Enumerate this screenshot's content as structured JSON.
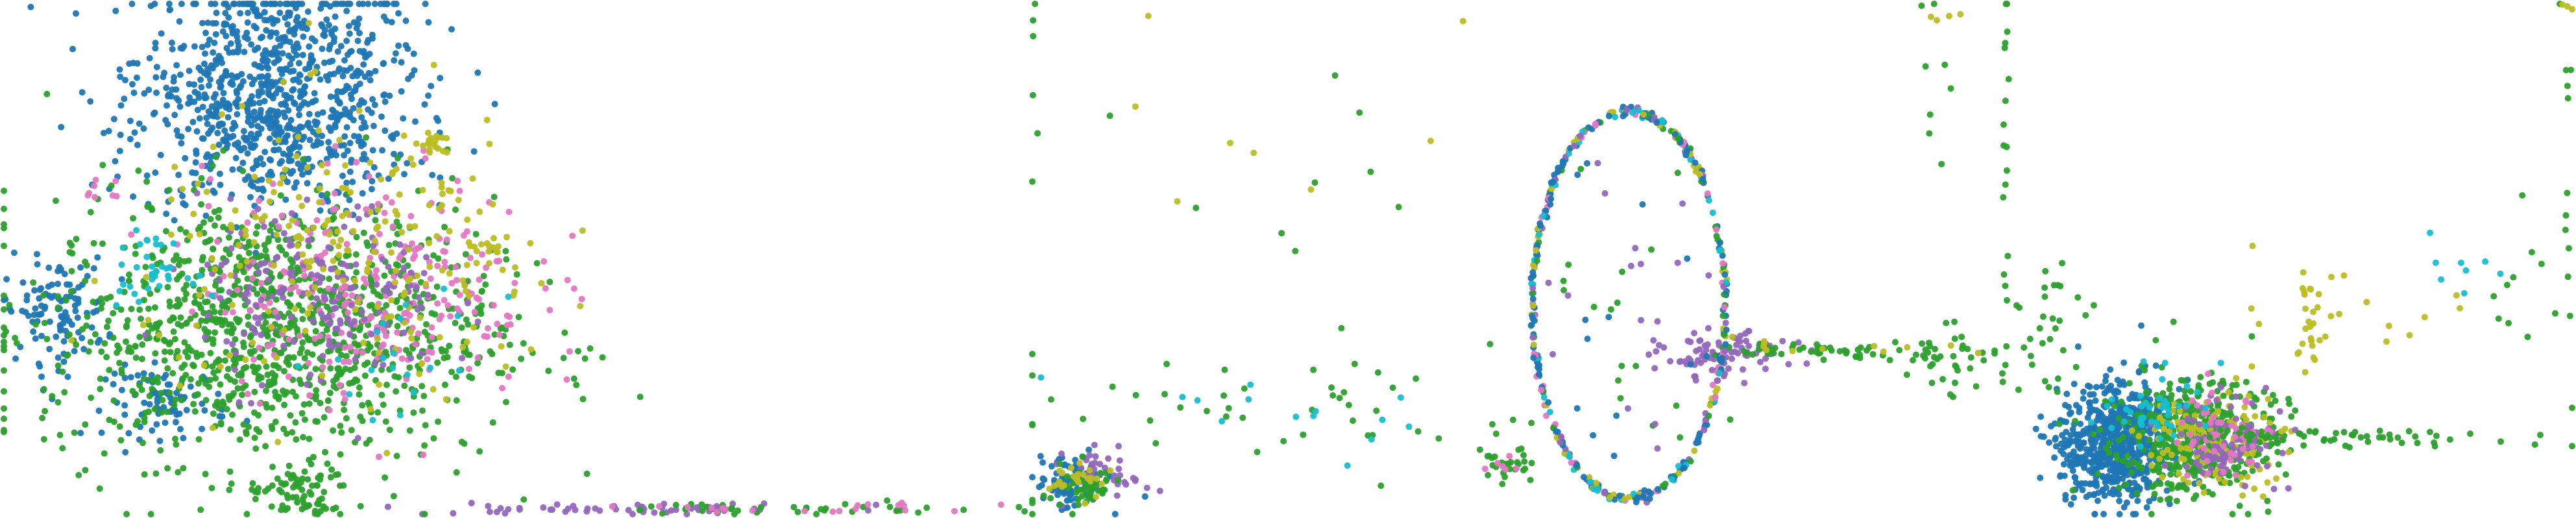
{
  "figure": {
    "colors": {
      "blue": "#1f77b4",
      "green": "#2ca02c",
      "purple": "#9467bd",
      "pink": "#e377c2",
      "olive": "#bcbd22",
      "cyan": "#17becf"
    }
  },
  "chart_data": [
    {
      "type": "scatter",
      "title": "",
      "xlabel": "",
      "ylabel": "",
      "axes": "hidden",
      "grid": false,
      "legend": "none",
      "xlim": [
        0,
        100
      ],
      "ylim": [
        0,
        100
      ],
      "clusters": [
        {
          "color": "blue",
          "center": [
            27,
            89
          ],
          "spread": [
            7,
            9
          ],
          "n": 500
        },
        {
          "color": "blue",
          "center": [
            26,
            74
          ],
          "spread": [
            7,
            8
          ],
          "n": 420
        },
        {
          "color": "blue",
          "center": [
            5,
            40
          ],
          "spread": [
            2.5,
            5
          ],
          "n": 110
        },
        {
          "color": "blue",
          "center": [
            16,
            22
          ],
          "spread": [
            3,
            3.5
          ],
          "n": 80
        },
        {
          "color": "green",
          "center": [
            26,
            36
          ],
          "spread": [
            11,
            13
          ],
          "n": 1150
        },
        {
          "color": "green",
          "center": [
            29,
            4
          ],
          "spread": [
            2.5,
            3
          ],
          "n": 70
        },
        {
          "color": "pink",
          "center": [
            36,
            45
          ],
          "spread": [
            8,
            11
          ],
          "n": 260
        },
        {
          "color": "purple",
          "center": [
            31,
            43
          ],
          "spread": [
            6,
            9
          ],
          "n": 180
        },
        {
          "color": "olive",
          "center": [
            34,
            50
          ],
          "spread": [
            10,
            14
          ],
          "n": 220
        },
        {
          "color": "olive",
          "center": [
            42,
            74
          ],
          "spread": [
            1.2,
            1.8
          ],
          "n": 18
        },
        {
          "color": "olive",
          "center": [
            48,
            52
          ],
          "spread": [
            1.2,
            1.8
          ],
          "n": 16
        },
        {
          "color": "cyan",
          "center": [
            14,
            48
          ],
          "spread": [
            2,
            3
          ],
          "n": 35
        },
        {
          "color": "cyan",
          "center": [
            40,
            30
          ],
          "spread": [
            4,
            6
          ],
          "n": 20
        },
        {
          "color": "pink",
          "center": [
            9,
            63
          ],
          "spread": [
            1,
            1.2
          ],
          "n": 8
        },
        {
          "color": "purple",
          "center": [
            62,
            1
          ],
          "spread": [
            10,
            0.6
          ],
          "n": 60
        },
        {
          "color": "green",
          "center": [
            75,
            1
          ],
          "spread": [
            14,
            0.6
          ],
          "n": 40
        },
        {
          "color": "pink",
          "center": [
            80,
            1
          ],
          "spread": [
            10,
            0.6
          ],
          "n": 20
        }
      ]
    },
    {
      "type": "scatter",
      "title": "",
      "xlabel": "",
      "ylabel": "",
      "axes": "hidden",
      "grid": false,
      "legend": "none",
      "xlim": [
        0,
        100
      ],
      "ylim": [
        0,
        100
      ],
      "clusters": [
        {
          "color": "blue",
          "center": [
            4,
            6
          ],
          "spread": [
            1.8,
            2.8
          ],
          "n": 90
        },
        {
          "color": "purple",
          "center": [
            8,
            8
          ],
          "spread": [
            2.2,
            2.4
          ],
          "n": 40
        },
        {
          "color": "green",
          "center": [
            5,
            5
          ],
          "spread": [
            2,
            2.4
          ],
          "n": 50
        },
        {
          "color": "olive",
          "center": [
            5,
            7
          ],
          "spread": [
            1.6,
            2
          ],
          "n": 25
        },
        {
          "color": "green",
          "center": [
            29,
            20
          ],
          "spread": [
            17,
            6
          ],
          "n": 50
        },
        {
          "color": "cyan",
          "center": [
            22,
            20
          ],
          "spread": [
            10,
            5
          ],
          "n": 14
        },
        {
          "color": "green",
          "center": [
            49,
            9
          ],
          "spread": [
            1.2,
            2
          ],
          "n": 25
        },
        {
          "color": "pink",
          "center": [
            49,
            11
          ],
          "spread": [
            1,
            1.2
          ],
          "n": 6
        },
        {
          "color": "purple",
          "center": [
            72,
            31
          ],
          "spread": [
            3.5,
            2.2
          ],
          "n": 90
        },
        {
          "color": "green",
          "center": [
            85,
            32
          ],
          "spread": [
            8,
            0.8
          ],
          "n": 60
        },
        {
          "color": "olive",
          "center": [
            80,
            33
          ],
          "spread": [
            8,
            1
          ],
          "n": 12
        },
        {
          "color": "green",
          "center": [
            96,
            30
          ],
          "spread": [
            2,
            4
          ],
          "n": 25
        },
        {
          "color": "olive",
          "center": [
            23,
            80
          ],
          "spread": [
            14,
            12
          ],
          "n": 8
        },
        {
          "color": "green",
          "center": [
            30,
            60
          ],
          "spread": [
            10,
            15
          ],
          "n": 10
        },
        {
          "color": "green",
          "center": [
            0.2,
            60
          ],
          "spread": [
            0.2,
            30
          ],
          "n": 8
        },
        {
          "color": "olive",
          "center": [
            96,
            98
          ],
          "spread": [
            2,
            1
          ],
          "n": 4
        },
        {
          "color": "green",
          "center": [
            94,
            80
          ],
          "spread": [
            1,
            15
          ],
          "n": 8
        }
      ],
      "rings": [
        {
          "center": [
            62,
            41
          ],
          "radius": [
            10,
            38
          ],
          "n": 420,
          "colors": [
            "blue",
            "blue",
            "blue",
            "green",
            "purple",
            "pink",
            "olive",
            "cyan"
          ]
        }
      ],
      "interior_points": {
        "center": [
          62,
          41
        ],
        "radius": [
          9,
          35
        ],
        "n": 45,
        "colors": [
          "blue",
          "green",
          "purple"
        ]
      }
    },
    {
      "type": "scatter",
      "title": "",
      "xlabel": "",
      "ylabel": "",
      "axes": "hidden",
      "grid": false,
      "legend": "none",
      "xlim": [
        0,
        100
      ],
      "ylim": [
        0,
        100
      ],
      "clusters": [
        {
          "color": "blue",
          "center": [
            20,
            14
          ],
          "spread": [
            5,
            6
          ],
          "n": 650
        },
        {
          "color": "green",
          "center": [
            34,
            15
          ],
          "spread": [
            7,
            6
          ],
          "n": 420
        },
        {
          "color": "olive",
          "center": [
            37,
            15
          ],
          "spread": [
            6,
            5
          ],
          "n": 140
        },
        {
          "color": "purple",
          "center": [
            40,
            14
          ],
          "spread": [
            5,
            4
          ],
          "n": 100
        },
        {
          "color": "pink",
          "center": [
            39,
            16
          ],
          "spread": [
            4,
            4
          ],
          "n": 50
        },
        {
          "color": "cyan",
          "center": [
            27,
            22
          ],
          "spread": [
            5,
            4
          ],
          "n": 40
        },
        {
          "color": "green",
          "center": [
            62,
            15
          ],
          "spread": [
            14,
            0.8
          ],
          "n": 60
        },
        {
          "color": "green",
          "center": [
            7,
            35
          ],
          "spread": [
            3,
            8
          ],
          "n": 35
        },
        {
          "color": "green",
          "center": [
            0.5,
            70
          ],
          "spread": [
            0.3,
            28
          ],
          "n": 18
        },
        {
          "color": "olive",
          "center": [
            54,
            36
          ],
          "spread": [
            1.2,
            6
          ],
          "n": 25
        },
        {
          "color": "olive",
          "center": [
            70,
            42
          ],
          "spread": [
            14,
            8
          ],
          "n": 14
        },
        {
          "color": "green",
          "center": [
            90,
            40
          ],
          "spread": [
            6,
            10
          ],
          "n": 10
        },
        {
          "color": "cyan",
          "center": [
            75,
            50
          ],
          "spread": [
            6,
            4
          ],
          "n": 8
        },
        {
          "color": "green",
          "center": [
            99,
            70
          ],
          "spread": [
            0.5,
            25
          ],
          "n": 12
        },
        {
          "color": "olive",
          "center": [
            99,
            98
          ],
          "spread": [
            1,
            1
          ],
          "n": 3
        }
      ]
    }
  ]
}
